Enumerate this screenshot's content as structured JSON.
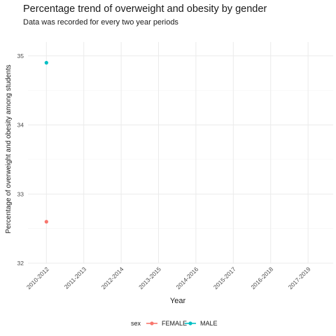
{
  "chart_data": {
    "type": "scatter",
    "title": "Percentage trend of overweight and obesity by gender",
    "subtitle": "Data was recorded for every two year periods",
    "xlabel": "Year",
    "ylabel": "Percentage of overweight and obesity among students",
    "categories": [
      "2010-2012",
      "2011-2013",
      "2012-2014",
      "2013-2015",
      "2014-2016",
      "2015-2017",
      "2016-2018",
      "2017-2019"
    ],
    "ylim": [
      32,
      35.2
    ],
    "yticks": [
      "32",
      "33",
      "34",
      "35"
    ],
    "grid": true,
    "legend_title": "sex",
    "legend_position": "bottom",
    "series": [
      {
        "name": "FEMALE",
        "color": "#F8766D",
        "points": [
          {
            "x": "2010-2012",
            "y": 32.6
          }
        ]
      },
      {
        "name": "MALE",
        "color": "#00BFC4",
        "points": [
          {
            "x": "2010-2012",
            "y": 34.9
          }
        ]
      }
    ]
  }
}
